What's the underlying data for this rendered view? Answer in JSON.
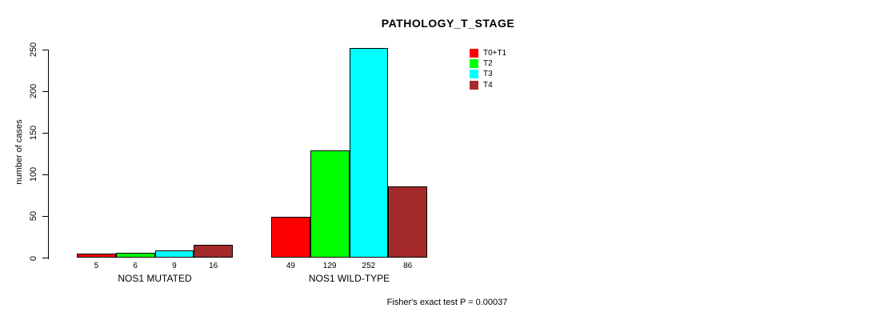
{
  "chart_data": {
    "type": "bar",
    "title": "PATHOLOGY_T_STAGE",
    "ylabel": "number of cases",
    "xlabel": "",
    "ylim": [
      0,
      250
    ],
    "yticks": [
      0,
      50,
      100,
      150,
      200,
      250
    ],
    "grid": false,
    "categories": [
      "NOS1 MUTATED",
      "NOS1 WILD-TYPE"
    ],
    "series": [
      {
        "name": "T0+T1",
        "color": "#ff0000",
        "values": [
          5,
          49
        ]
      },
      {
        "name": "T2",
        "color": "#00ff00",
        "values": [
          6,
          129
        ]
      },
      {
        "name": "T3",
        "color": "#00ffff",
        "values": [
          9,
          252
        ]
      },
      {
        "name": "T4",
        "color": "#a52a2a",
        "values": [
          16,
          86
        ]
      }
    ],
    "show_value_labels": true,
    "legend_position": "top-right",
    "annotation": "Fisher's exact test P = 0.00037"
  }
}
